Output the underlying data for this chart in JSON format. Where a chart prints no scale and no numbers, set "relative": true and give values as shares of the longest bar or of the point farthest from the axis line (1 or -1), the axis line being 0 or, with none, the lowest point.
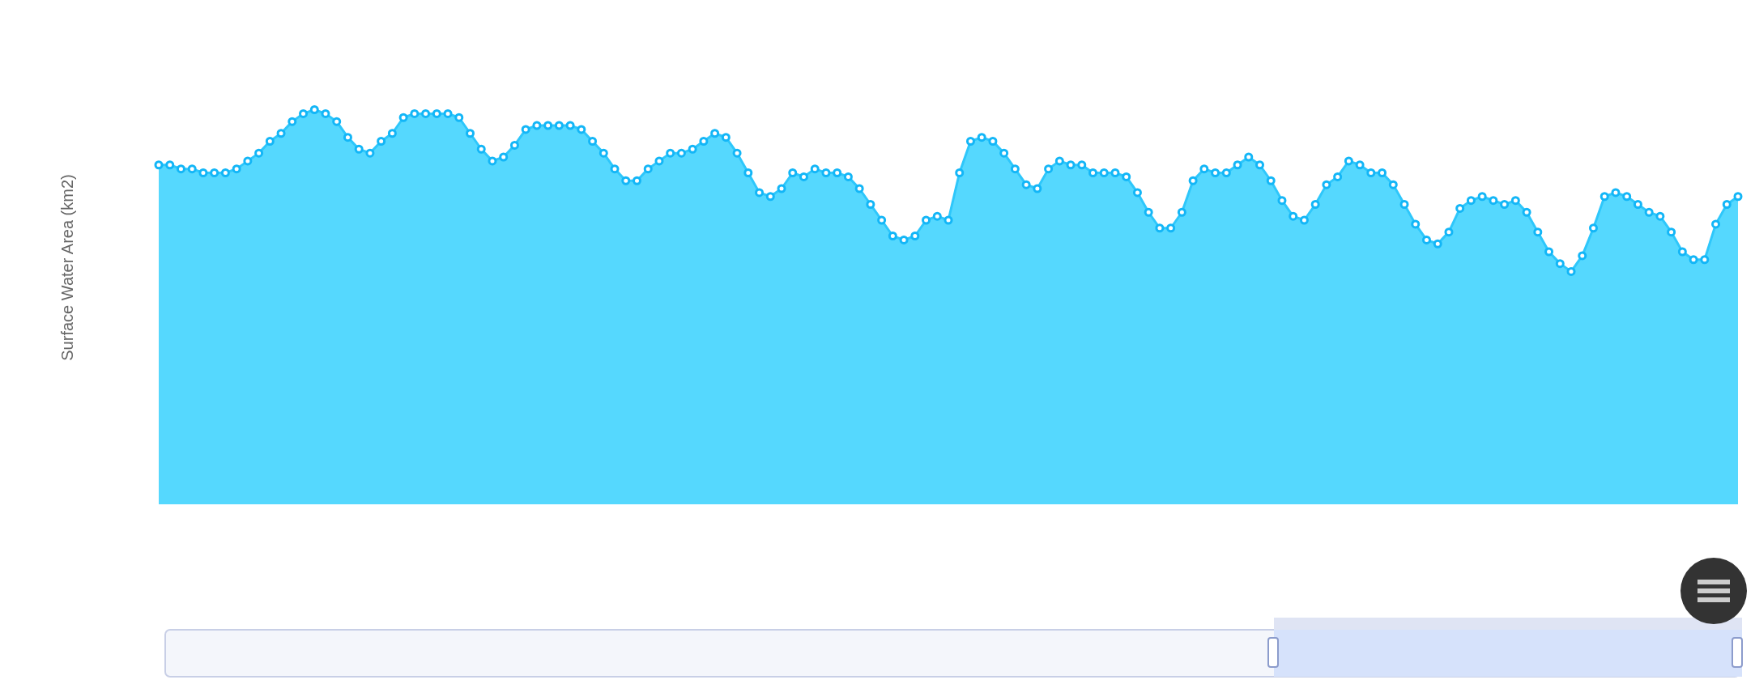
{
  "chart_data": {
    "type": "area",
    "ylabel": "Surface Water Area (km2)",
    "relative": true,
    "marker": "circle",
    "legend": false,
    "grid": false,
    "categories": [
      null,
      null,
      null,
      null,
      null,
      null,
      null,
      null,
      null,
      null,
      null,
      null,
      null,
      null,
      null,
      null,
      null,
      null,
      null,
      null,
      null,
      null,
      null,
      null,
      null,
      null,
      null,
      null,
      null,
      null,
      null,
      null,
      null,
      null,
      null,
      null,
      null,
      null,
      null,
      null,
      null,
      null,
      null,
      null,
      null,
      null,
      null,
      null,
      null,
      null,
      null,
      null,
      null,
      null,
      null,
      null,
      null,
      null,
      null,
      null,
      null,
      null,
      null,
      null,
      null,
      null,
      null,
      null,
      null,
      null,
      null,
      null,
      null,
      null,
      null,
      null,
      null,
      null,
      null,
      null,
      null,
      null,
      null,
      null,
      null,
      null,
      null,
      null,
      null,
      null,
      null,
      null,
      null,
      null,
      null,
      null,
      null,
      null,
      null,
      null,
      null,
      null,
      null,
      null,
      null,
      null,
      null,
      null,
      null,
      null,
      null,
      null,
      null,
      null,
      null,
      null,
      null,
      null,
      null,
      null,
      null,
      null,
      null,
      null,
      null,
      null,
      null,
      null,
      null,
      null,
      null,
      null,
      null,
      null,
      null,
      null,
      null,
      null,
      null,
      null,
      null,
      null,
      null
    ],
    "series": [
      {
        "color": "#55d8fe",
        "values": [
          0.86,
          0.86,
          0.85,
          0.85,
          0.84,
          0.84,
          0.84,
          0.85,
          0.87,
          0.89,
          0.92,
          0.94,
          0.97,
          0.99,
          1,
          0.99,
          0.97,
          0.93,
          0.9,
          0.89,
          0.92,
          0.94,
          0.98,
          0.99,
          0.99,
          0.99,
          0.99,
          0.98,
          0.94,
          0.9,
          0.87,
          0.88,
          0.91,
          0.95,
          0.96,
          0.96,
          0.96,
          0.96,
          0.95,
          0.92,
          0.89,
          0.85,
          0.82,
          0.82,
          0.85,
          0.87,
          0.89,
          0.89,
          0.9,
          0.92,
          0.94,
          0.93,
          0.89,
          0.84,
          0.79,
          0.78,
          0.8,
          0.84,
          0.83,
          0.85,
          0.84,
          0.84,
          0.83,
          0.8,
          0.76,
          0.72,
          0.68,
          0.67,
          0.68,
          0.72,
          0.73,
          0.72,
          0.84,
          0.92,
          0.93,
          0.92,
          0.89,
          0.85,
          0.81,
          0.8,
          0.85,
          0.87,
          0.86,
          0.86,
          0.84,
          0.84,
          0.84,
          0.83,
          0.79,
          0.74,
          0.7,
          0.7,
          0.74,
          0.82,
          0.85,
          0.84,
          0.84,
          0.86,
          0.88,
          0.86,
          0.82,
          0.77,
          0.73,
          0.72,
          0.76,
          0.81,
          0.83,
          0.87,
          0.86,
          0.84,
          0.84,
          0.81,
          0.76,
          0.71,
          0.67,
          0.66,
          0.69,
          0.75,
          0.77,
          0.78,
          0.77,
          0.76,
          0.77,
          0.74,
          0.69,
          0.64,
          0.61,
          0.59,
          0.63,
          0.7,
          0.78,
          0.79,
          0.78,
          0.76,
          0.74,
          0.73,
          0.69,
          0.64,
          0.62,
          0.62,
          0.71,
          0.76,
          0.78
        ]
      }
    ]
  }
}
